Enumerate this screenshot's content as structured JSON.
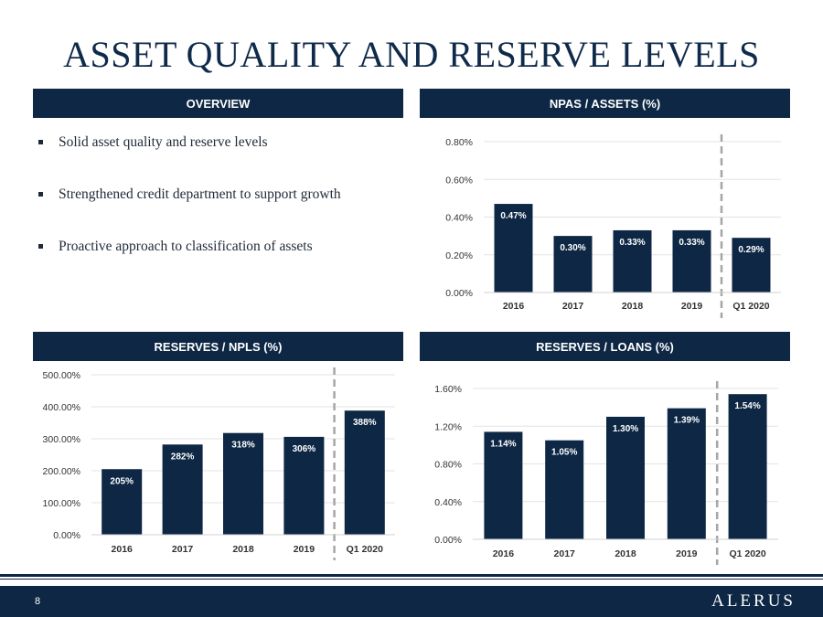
{
  "title": "ASSET QUALITY AND RESERVE LEVELS",
  "overview": {
    "header": "OVERVIEW",
    "bullets": [
      "Solid asset quality and reserve levels",
      "Strengthened credit department to support growth",
      "Proactive approach to classification of assets"
    ]
  },
  "colors": {
    "bar": "#0d2744",
    "header": "#0d2744",
    "grid": "#e3e3e3",
    "divider": "#a6a6a6"
  },
  "chart_data": [
    {
      "id": "npas",
      "type": "bar",
      "title": "NPAS / ASSETS (%)",
      "categories": [
        "2016",
        "2017",
        "2018",
        "2019",
        "Q1 2020"
      ],
      "values": [
        0.47,
        0.3,
        0.33,
        0.33,
        0.29
      ],
      "labels": [
        "0.47%",
        "0.30%",
        "0.33%",
        "0.33%",
        "0.29%"
      ],
      "ylim": [
        0,
        0.8
      ],
      "yticks": [
        0,
        0.2,
        0.4,
        0.6,
        0.8
      ],
      "ytick_labels": [
        "0.00%",
        "0.20%",
        "0.40%",
        "0.60%",
        "0.80%"
      ],
      "grid": true,
      "divider_before_last": true
    },
    {
      "id": "reserves-npls",
      "type": "bar",
      "title": "RESERVES / NPLS (%)",
      "categories": [
        "2016",
        "2017",
        "2018",
        "2019",
        "Q1 2020"
      ],
      "values": [
        205,
        282,
        318,
        306,
        388
      ],
      "labels": [
        "205%",
        "282%",
        "318%",
        "306%",
        "388%"
      ],
      "ylim": [
        0,
        500
      ],
      "yticks": [
        0,
        100,
        200,
        300,
        400,
        500
      ],
      "ytick_labels": [
        "0.00%",
        "100.00%",
        "200.00%",
        "300.00%",
        "400.00%",
        "500.00%"
      ],
      "grid": true,
      "divider_before_last": true
    },
    {
      "id": "reserves-loans",
      "type": "bar",
      "title": "RESERVES / LOANS (%)",
      "categories": [
        "2016",
        "2017",
        "2018",
        "2019",
        "Q1 2020"
      ],
      "values": [
        1.14,
        1.05,
        1.3,
        1.39,
        1.54
      ],
      "labels": [
        "1.14%",
        "1.05%",
        "1.30%",
        "1.39%",
        "1.54%"
      ],
      "ylim": [
        0,
        1.6
      ],
      "yticks": [
        0,
        0.4,
        0.8,
        1.2,
        1.6
      ],
      "ytick_labels": [
        "0.00%",
        "0.40%",
        "0.80%",
        "1.20%",
        "1.60%"
      ],
      "grid": true,
      "divider_before_last": true
    }
  ],
  "footer": {
    "page_number": "8",
    "logo": "ALERUS"
  }
}
